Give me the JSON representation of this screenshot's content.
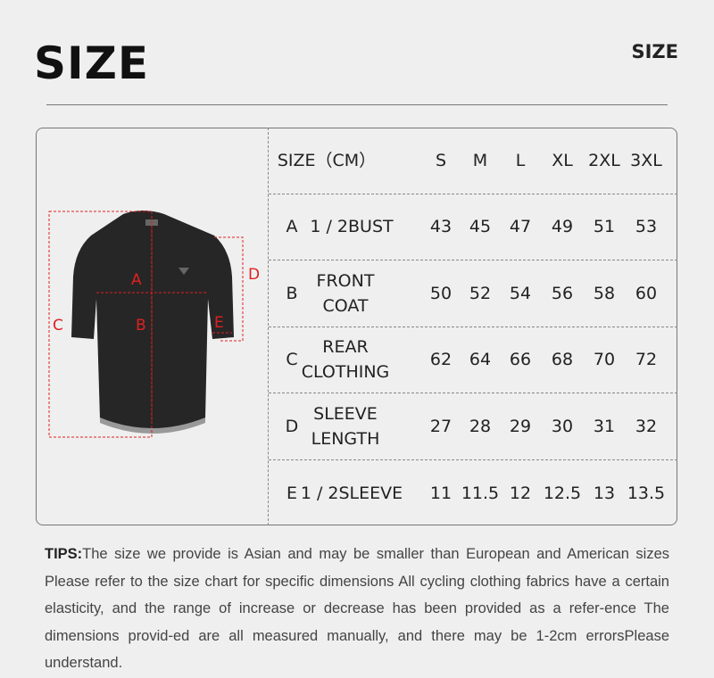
{
  "header": {
    "title": "SIZE",
    "title_right": "SIZE"
  },
  "diagram": {
    "labels": [
      "A",
      "B",
      "C",
      "D",
      "E"
    ],
    "line_color": "#e02020"
  },
  "table": {
    "header": {
      "label": "SIZE（CM）",
      "sizes": [
        "S",
        "M",
        "L",
        "XL",
        "2XL",
        "3XL"
      ]
    },
    "rows": [
      {
        "letter": "A",
        "name": "1 / 2BUST",
        "values": [
          "43",
          "45",
          "47",
          "49",
          "51",
          "53"
        ]
      },
      {
        "letter": "B",
        "name": "FRONT COAT",
        "values": [
          "50",
          "52",
          "54",
          "56",
          "58",
          "60"
        ]
      },
      {
        "letter": "C",
        "name": "REAR CLOTHING",
        "values": [
          "62",
          "64",
          "66",
          "68",
          "70",
          "72"
        ]
      },
      {
        "letter": "D",
        "name": "SLEEVE LENGTH",
        "values": [
          "27",
          "28",
          "29",
          "30",
          "31",
          "32"
        ]
      },
      {
        "letter": "E",
        "name": "1 / 2SLEEVE",
        "values": [
          "11",
          "11.5",
          "12",
          "12.5",
          "13",
          "13.5"
        ]
      }
    ]
  },
  "tips": {
    "label": "TIPS:",
    "text": "The size we provide is Asian and may be smaller than European and American sizes Please refer to the size chart for specific dimensions All cycling clothing fabrics have a certain elasticity, and the range of increase or decrease has been provided as a refer-ence The dimensions provid-ed are all measured manually, and there may be 1-2cm errorsPlease understand."
  }
}
